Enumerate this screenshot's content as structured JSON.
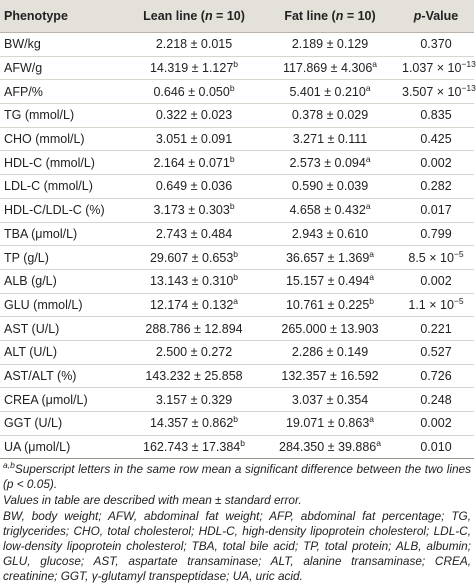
{
  "table": {
    "headers": [
      {
        "parts": [
          "Phenotype"
        ]
      },
      {
        "parts": [
          "Lean line (",
          "n",
          " = 10)"
        ],
        "italic": [
          1
        ]
      },
      {
        "parts": [
          "Fat line (",
          "n",
          " = 10)"
        ],
        "italic": [
          1
        ]
      },
      {
        "parts": [
          "p",
          "-Value"
        ],
        "italic": [
          0
        ]
      }
    ],
    "rows": [
      [
        "BW/kg",
        {
          "text": "2.218 ± 0.015"
        },
        {
          "text": "2.189 ± 0.129"
        },
        {
          "text": "0.370"
        }
      ],
      [
        "AFW/g",
        {
          "text": "14.319 ± 1.127",
          "sup": "b"
        },
        {
          "text": "117.869 ± 4.306",
          "sup": "a"
        },
        {
          "text": "1.037 × 10",
          "sup": "−13"
        }
      ],
      [
        "AFP/%",
        {
          "text": "0.646 ± 0.050",
          "sup": "b"
        },
        {
          "text": "5.401 ± 0.210",
          "sup": "a"
        },
        {
          "text": "3.507 × 10",
          "sup": "−13"
        }
      ],
      [
        "TG (mmol/L)",
        {
          "text": "0.322 ± 0.023"
        },
        {
          "text": "0.378 ± 0.029"
        },
        {
          "text": "0.835"
        }
      ],
      [
        "CHO (mmol/L)",
        {
          "text": "3.051 ± 0.091"
        },
        {
          "text": "3.271 ± 0.111"
        },
        {
          "text": "0.425"
        }
      ],
      [
        "HDL-C (mmol/L)",
        {
          "text": "2.164 ± 0.071",
          "sup": "b"
        },
        {
          "text": "2.573 ± 0.094",
          "sup": "a"
        },
        {
          "text": "0.002"
        }
      ],
      [
        "LDL-C (mmol/L)",
        {
          "text": "0.649 ± 0.036"
        },
        {
          "text": "0.590 ± 0.039"
        },
        {
          "text": "0.282"
        }
      ],
      [
        "HDL-C/LDL-C (%)",
        {
          "text": "3.173 ± 0.303",
          "sup": "b"
        },
        {
          "text": "4.658 ± 0.432",
          "sup": "a"
        },
        {
          "text": "0.017"
        }
      ],
      [
        "TBA (μmol/L)",
        {
          "text": "2.743 ± 0.484"
        },
        {
          "text": "2.943 ± 0.610"
        },
        {
          "text": "0.799"
        }
      ],
      [
        "TP (g/L)",
        {
          "text": "29.607 ± 0.653",
          "sup": "b"
        },
        {
          "text": "36.657 ± 1.369",
          "sup": "a"
        },
        {
          "text": "8.5 × 10",
          "sup": "−5"
        }
      ],
      [
        "ALB (g/L)",
        {
          "text": "13.143 ± 0.310",
          "sup": "b"
        },
        {
          "text": "15.157 ± 0.494",
          "sup": "a"
        },
        {
          "text": "0.002"
        }
      ],
      [
        "GLU (mmol/L)",
        {
          "text": "12.174 ± 0.132",
          "sup": "a"
        },
        {
          "text": "10.761 ± 0.225",
          "sup": "b"
        },
        {
          "text": "1.1 × 10",
          "sup": "−5"
        }
      ],
      [
        "AST (U/L)",
        {
          "text": "288.786 ± 12.894"
        },
        {
          "text": "265.000 ± 13.903"
        },
        {
          "text": "0.221"
        }
      ],
      [
        "ALT (U/L)",
        {
          "text": "2.500 ± 0.272"
        },
        {
          "text": "2.286 ± 0.149"
        },
        {
          "text": "0.527"
        }
      ],
      [
        "AST/ALT (%)",
        {
          "text": "143.232 ± 25.858"
        },
        {
          "text": "132.357 ± 16.592"
        },
        {
          "text": "0.726"
        }
      ],
      [
        "CREA (μmol/L)",
        {
          "text": "3.157 ± 0.329"
        },
        {
          "text": "3.037 ± 0.354"
        },
        {
          "text": "0.248"
        }
      ],
      [
        "GGT (U/L)",
        {
          "text": "14.357 ± 0.862",
          "sup": "b"
        },
        {
          "text": "19.071 ± 0.863",
          "sup": "a"
        },
        {
          "text": "0.002"
        }
      ],
      [
        "UA (μmol/L)",
        {
          "text": "162.743 ± 17.384",
          "sup": "b"
        },
        {
          "text": "284.350 ± 39.886",
          "sup": "a"
        },
        {
          "text": "0.010"
        }
      ]
    ]
  },
  "notes": [
    {
      "sup": "a,b",
      "text": "Superscript letters in the same row mean a significant difference between the two lines (p < 0.05)."
    },
    {
      "text": "Values in table are described with mean ± standard error."
    },
    {
      "text": "BW, body weight; AFW, abdominal fat weight; AFP, abdominal fat percentage; TG, triglycerides; CHO, total cholesterol; HDL-C, high-density lipoprotein cholesterol; LDL-C, low-density lipoprotein cholesterol; TBA, total bile acid; TP, total protein; ALB, albumin; GLU, glucose; AST, aspartate transaminase; ALT, alanine transaminase; CREA, creatinine; GGT, γ-glutamyl transpeptidase; UA, uric acid."
    }
  ]
}
